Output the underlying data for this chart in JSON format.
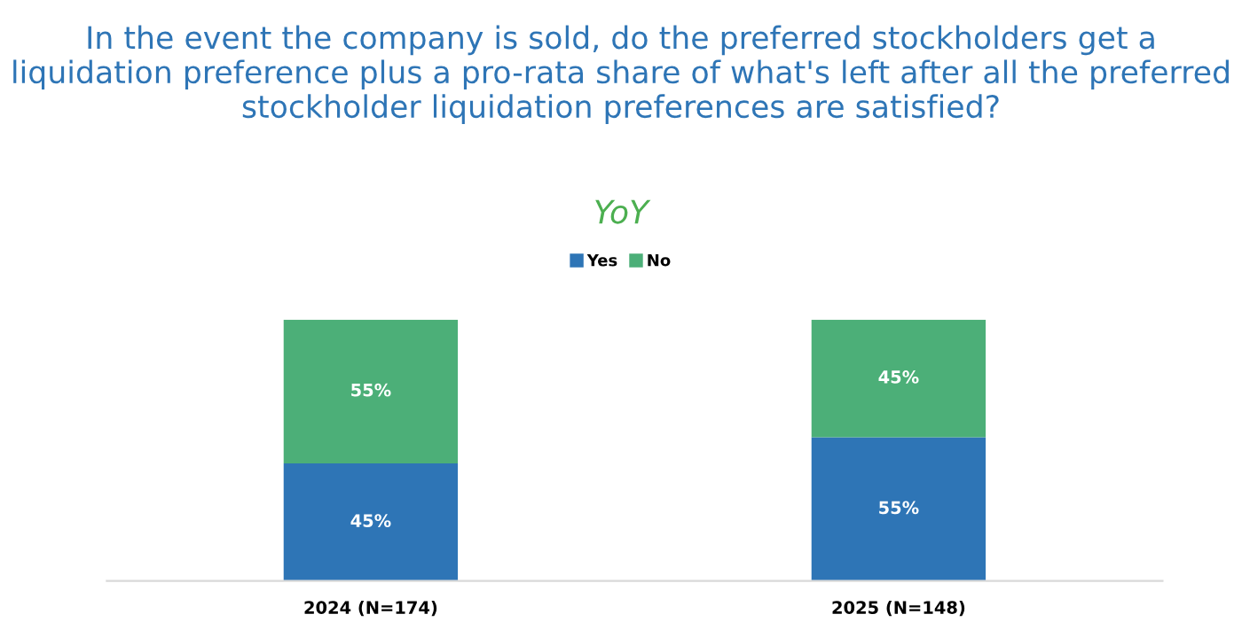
{
  "chart_data": {
    "type": "bar",
    "stacked": true,
    "title": "In the event the company is sold, do the preferred stockholders get a liquidation preference plus a pro-rata share of what's left after all the preferred stockholder liquidation preferences are satisfied?",
    "subtitle": "YoY",
    "categories": [
      "2024 (N=174)",
      "2025 (N=148)"
    ],
    "series": [
      {
        "name": "Yes",
        "color": "#2e75b6",
        "values": [
          45,
          55
        ],
        "value_labels": [
          "45%",
          "55%"
        ]
      },
      {
        "name": "No",
        "color": "#4caf78",
        "values": [
          55,
          45
        ],
        "value_labels": [
          "55%",
          "45%"
        ]
      }
    ],
    "ylim": [
      0,
      100
    ],
    "legend": "top",
    "grid": false,
    "tick_labels": "x"
  }
}
